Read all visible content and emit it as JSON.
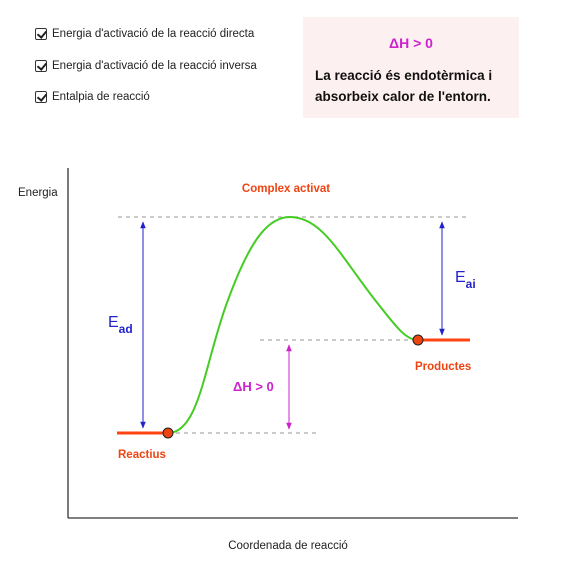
{
  "controls": {
    "checkboxes": [
      {
        "label": "Energia d'activació de la reacció directa",
        "checked": true
      },
      {
        "label": "Energia d'activació de la reacció inversa",
        "checked": true
      },
      {
        "label": "Entalpia de reacció",
        "checked": true
      }
    ]
  },
  "info": {
    "title": "ΔH > 0",
    "text": "La reacció és endotèrmica i absorbeix calor de l'entorn."
  },
  "diagram": {
    "y_axis_label": "Energia",
    "x_axis_label": "Coordenada de reacció",
    "peak_label": "Complex activat",
    "reactants_label": "Reactius",
    "products_label": "Productes",
    "ea_direct_main": "E",
    "ea_direct_sub": "ad",
    "ea_inverse_main": "E",
    "ea_inverse_sub": "ai",
    "delta_h_label": "ΔH > 0"
  },
  "colors": {
    "curve": "#44cc22",
    "levels": "#ff4411",
    "labels": "#ee4411",
    "ea_arrows": "#2222cc",
    "delta_h": "#cc22cc",
    "points": "#ee4411",
    "panel_bg": "#fdf0f0"
  }
}
